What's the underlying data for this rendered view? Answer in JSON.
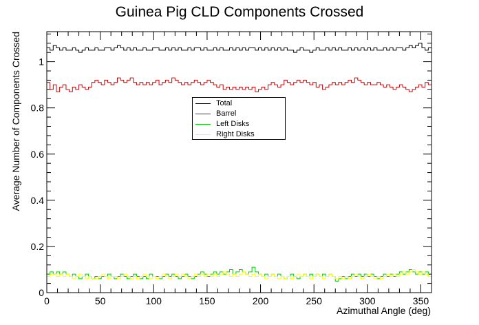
{
  "chart_data": {
    "type": "line",
    "title": "Guinea Pig CLD Components Crossed",
    "xlabel": "Azimuthal Angle (deg)",
    "ylabel": "Average Number of Components Crossed",
    "xlim": [
      0,
      360
    ],
    "ylim": [
      0,
      1.13
    ],
    "x_ticks": [
      0,
      50,
      100,
      150,
      200,
      250,
      300,
      350
    ],
    "y_ticks": [
      0,
      0.2,
      0.4,
      0.6,
      0.8,
      1
    ],
    "x_tick_labels": [
      "0",
      "50",
      "100",
      "150",
      "200",
      "250",
      "300",
      "350"
    ],
    "y_tick_labels": [
      "0",
      "0.2",
      "0.4",
      "0.6",
      "0.8",
      "1"
    ],
    "bin_width": 3,
    "grid": false,
    "legend_position": "upper-center",
    "series": [
      {
        "name": "Total",
        "color": "#000000",
        "values": [
          1.06,
          1.05,
          1.07,
          1.06,
          1.05,
          1.06,
          1.05,
          1.05,
          1.06,
          1.05,
          1.04,
          1.05,
          1.06,
          1.05,
          1.05,
          1.06,
          1.05,
          1.05,
          1.06,
          1.06,
          1.05,
          1.06,
          1.07,
          1.06,
          1.05,
          1.06,
          1.05,
          1.06,
          1.05,
          1.05,
          1.06,
          1.05,
          1.05,
          1.06,
          1.06,
          1.05,
          1.05,
          1.06,
          1.05,
          1.06,
          1.05,
          1.06,
          1.05,
          1.05,
          1.06,
          1.05,
          1.06,
          1.06,
          1.05,
          1.06,
          1.05,
          1.05,
          1.06,
          1.05,
          1.06,
          1.05,
          1.05,
          1.06,
          1.05,
          1.06,
          1.05,
          1.06,
          1.05,
          1.06,
          1.06,
          1.05,
          1.06,
          1.05,
          1.06,
          1.05,
          1.06,
          1.05,
          1.06,
          1.05,
          1.06,
          1.05,
          1.05,
          1.04,
          1.05,
          1.06,
          1.05,
          1.05,
          1.04,
          1.05,
          1.06,
          1.05,
          1.05,
          1.06,
          1.05,
          1.06,
          1.05,
          1.06,
          1.05,
          1.05,
          1.06,
          1.05,
          1.06,
          1.05,
          1.06,
          1.05,
          1.06,
          1.05,
          1.06,
          1.05,
          1.05,
          1.06,
          1.05,
          1.06,
          1.05,
          1.06,
          1.06,
          1.05,
          1.06,
          1.07,
          1.06,
          1.07,
          1.08,
          1.06,
          1.05,
          1.06
        ]
      },
      {
        "name": "Barrel",
        "color": "#cc0000",
        "values": [
          0.91,
          0.88,
          0.9,
          0.87,
          0.89,
          0.9,
          0.88,
          0.87,
          0.89,
          0.88,
          0.9,
          0.89,
          0.88,
          0.89,
          0.91,
          0.92,
          0.91,
          0.9,
          0.92,
          0.91,
          0.9,
          0.91,
          0.93,
          0.92,
          0.91,
          0.92,
          0.93,
          0.91,
          0.9,
          0.91,
          0.9,
          0.91,
          0.9,
          0.91,
          0.92,
          0.9,
          0.91,
          0.92,
          0.91,
          0.93,
          0.92,
          0.91,
          0.9,
          0.91,
          0.9,
          0.91,
          0.92,
          0.91,
          0.9,
          0.91,
          0.92,
          0.91,
          0.9,
          0.89,
          0.9,
          0.88,
          0.89,
          0.88,
          0.89,
          0.88,
          0.89,
          0.88,
          0.89,
          0.88,
          0.89,
          0.87,
          0.88,
          0.89,
          0.88,
          0.9,
          0.91,
          0.9,
          0.89,
          0.9,
          0.92,
          0.91,
          0.9,
          0.91,
          0.92,
          0.91,
          0.92,
          0.91,
          0.9,
          0.91,
          0.89,
          0.9,
          0.88,
          0.89,
          0.9,
          0.91,
          0.9,
          0.91,
          0.9,
          0.91,
          0.92,
          0.91,
          0.93,
          0.92,
          0.91,
          0.9,
          0.91,
          0.9,
          0.9,
          0.91,
          0.9,
          0.89,
          0.9,
          0.89,
          0.88,
          0.89,
          0.9,
          0.89,
          0.88,
          0.87,
          0.88,
          0.89,
          0.9,
          0.89,
          0.91,
          0.9
        ]
      },
      {
        "name": "Left Disks",
        "color": "#00cc00",
        "values": [
          0.08,
          0.09,
          0.08,
          0.09,
          0.08,
          0.09,
          0.08,
          0.07,
          0.08,
          0.07,
          0.06,
          0.07,
          0.08,
          0.07,
          0.06,
          0.07,
          0.06,
          0.07,
          0.07,
          0.08,
          0.07,
          0.06,
          0.07,
          0.08,
          0.07,
          0.06,
          0.07,
          0.08,
          0.07,
          0.06,
          0.07,
          0.06,
          0.08,
          0.07,
          0.07,
          0.06,
          0.07,
          0.08,
          0.07,
          0.08,
          0.07,
          0.06,
          0.07,
          0.08,
          0.07,
          0.06,
          0.07,
          0.08,
          0.09,
          0.08,
          0.07,
          0.08,
          0.09,
          0.08,
          0.09,
          0.08,
          0.09,
          0.1,
          0.08,
          0.09,
          0.1,
          0.09,
          0.08,
          0.09,
          0.11,
          0.09,
          0.08,
          0.07,
          0.08,
          0.07,
          0.08,
          0.07,
          0.08,
          0.07,
          0.06,
          0.07,
          0.08,
          0.07,
          0.06,
          0.07,
          0.08,
          0.07,
          0.08,
          0.07,
          0.08,
          0.07,
          0.08,
          0.07,
          0.08,
          0.07,
          0.05,
          0.06,
          0.07,
          0.06,
          0.07,
          0.08,
          0.07,
          0.08,
          0.07,
          0.08,
          0.07,
          0.08,
          0.07,
          0.06,
          0.07,
          0.08,
          0.07,
          0.08,
          0.07,
          0.08,
          0.09,
          0.08,
          0.09,
          0.1,
          0.09,
          0.08,
          0.09,
          0.08,
          0.09,
          0.07
        ]
      },
      {
        "name": "Right Disks",
        "color": "#ffff00",
        "values": [
          0.07,
          0.08,
          0.08,
          0.07,
          0.08,
          0.07,
          0.08,
          0.07,
          0.06,
          0.07,
          0.08,
          0.07,
          0.06,
          0.07,
          0.06,
          0.06,
          0.07,
          0.08,
          0.07,
          0.06,
          0.07,
          0.07,
          0.06,
          0.07,
          0.08,
          0.07,
          0.06,
          0.07,
          0.06,
          0.07,
          0.08,
          0.07,
          0.06,
          0.07,
          0.06,
          0.07,
          0.08,
          0.07,
          0.06,
          0.07,
          0.08,
          0.07,
          0.08,
          0.07,
          0.06,
          0.07,
          0.08,
          0.07,
          0.08,
          0.07,
          0.08,
          0.07,
          0.08,
          0.07,
          0.08,
          0.09,
          0.08,
          0.07,
          0.08,
          0.07,
          0.08,
          0.09,
          0.08,
          0.07,
          0.08,
          0.07,
          0.08,
          0.07,
          0.06,
          0.07,
          0.08,
          0.07,
          0.06,
          0.07,
          0.06,
          0.07,
          0.06,
          0.07,
          0.08,
          0.07,
          0.08,
          0.07,
          0.06,
          0.07,
          0.08,
          0.07,
          0.06,
          0.07,
          0.08,
          0.07,
          0.06,
          0.07,
          0.06,
          0.07,
          0.06,
          0.07,
          0.08,
          0.07,
          0.06,
          0.07,
          0.08,
          0.07,
          0.06,
          0.07,
          0.06,
          0.07,
          0.08,
          0.07,
          0.08,
          0.07,
          0.08,
          0.09,
          0.08,
          0.09,
          0.1,
          0.09,
          0.08,
          0.09,
          0.08,
          0.07
        ]
      }
    ]
  }
}
